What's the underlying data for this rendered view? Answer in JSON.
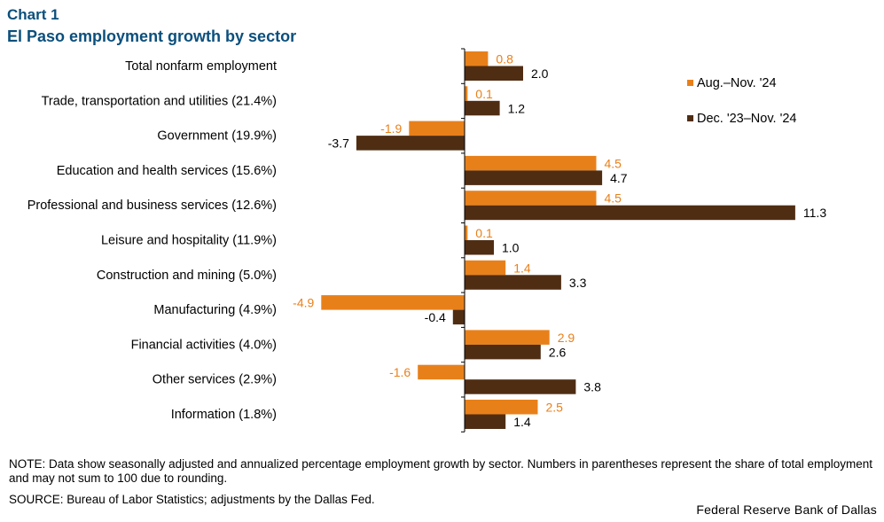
{
  "header": {
    "chart_number": "Chart 1",
    "title": "El Paso employment growth by sector"
  },
  "footer": {
    "note": "NOTE: Data show seasonally adjusted and annualized percentage employment growth by sector. Numbers in parentheses represent the share of total employment and may not sum to 100 due to rounding.",
    "source": "SOURCE: Bureau of Labor Statistics; adjustments by the Dallas Fed.",
    "credit": "Federal Reserve Bank of Dallas"
  },
  "colors": {
    "series1": "#e8801a",
    "series2": "#4f2d13",
    "axis": "#000000"
  },
  "chart_data": {
    "type": "bar",
    "orientation": "horizontal",
    "title": "El Paso employment growth by sector",
    "xlabel": "",
    "ylabel": "",
    "categories": [
      "Total nonfarm employment",
      "Trade, transportation and utilities (21.4%)",
      "Government (19.9%)",
      "Education and health services (15.6%)",
      "Professional and business services (12.6%)",
      "Leisure and hospitality (11.9%)",
      "Construction and mining (5.0%)",
      "Manufacturing (4.9%)",
      "Financial activities (4.0%)",
      "Other services (2.9%)",
      "Information (1.8%)"
    ],
    "series": [
      {
        "name": "Aug.–Nov. '24",
        "values": [
          0.8,
          0.1,
          -1.9,
          4.5,
          4.5,
          0.1,
          1.4,
          -4.9,
          2.9,
          -1.6,
          2.5
        ]
      },
      {
        "name": "Dec. '23–Nov. '24",
        "values": [
          2.0,
          1.2,
          -3.7,
          4.7,
          11.3,
          1.0,
          3.3,
          -0.4,
          2.6,
          3.8,
          1.4
        ]
      }
    ],
    "xlim": [
      -5,
      11.5
    ],
    "legend": "top-right",
    "grid": false
  }
}
